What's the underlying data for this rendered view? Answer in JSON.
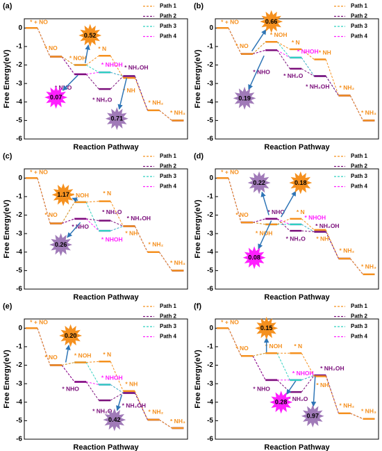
{
  "chart_data": [
    {
      "type": "line",
      "title": "(a)",
      "xlabel": "Reaction Pathway",
      "ylabel": "Free Energy(eV)",
      "x": [
        0,
        1,
        2,
        3,
        4,
        5,
        6
      ],
      "xlim": [
        -0.3,
        6.4
      ],
      "ylim": [
        -6,
        0.5
      ],
      "yticks": [
        0,
        -1,
        -2,
        -3,
        -4,
        -5,
        -6
      ],
      "series": [
        {
          "name": "Path 1",
          "color": "#f5901e",
          "values": [
            0,
            -1.55,
            -2.0,
            -1.5,
            -2.7,
            -4.45,
            -5.0
          ]
        },
        {
          "name": "Path 2",
          "color": "#7b0f7b",
          "values": [
            0,
            -1.55,
            -2.5,
            -3.3,
            -2.6,
            -4.45,
            -5.0
          ]
        },
        {
          "name": "Path 3",
          "color": "#2fd0c0",
          "values": [
            0,
            -1.55,
            -2.0,
            -2.4,
            -2.6,
            -4.45,
            -5.0
          ]
        },
        {
          "name": "Path 4",
          "color": "#ff1fff",
          "values": [
            0,
            -1.55,
            -2.5,
            -2.4,
            -2.6,
            -4.45,
            -5.0
          ]
        }
      ],
      "annotations": [
        {
          "text": "* + NO",
          "x": 0.3,
          "y": 0.3,
          "color": "#f5901e"
        },
        {
          "text": "* NO",
          "x": 0.8,
          "y": -1.1,
          "color": "#f5901e"
        },
        {
          "text": "* NOH",
          "x": 1.9,
          "y": -1.65,
          "color": "#f5901e"
        },
        {
          "text": "* N",
          "x": 2.9,
          "y": -1.15,
          "color": "#f5901e"
        },
        {
          "text": "* NHOH",
          "x": 3.3,
          "y": -2.0,
          "color": "#ff1fff"
        },
        {
          "text": "* NH₂OH",
          "x": 4.3,
          "y": -2.15,
          "color": "#7b0f7b"
        },
        {
          "text": "* NHO",
          "x": 1.3,
          "y": -3.25,
          "color": "#7b0f7b"
        },
        {
          "text": "* NH₂O",
          "x": 2.9,
          "y": -3.9,
          "color": "#7b0f7b"
        },
        {
          "text": "* NH",
          "x": 4.0,
          "y": -3.4,
          "color": "#f5901e"
        },
        {
          "text": "* NH₂",
          "x": 5.1,
          "y": -4.05,
          "color": "#f5901e"
        },
        {
          "text": "* NH₃",
          "x": 6.0,
          "y": -4.6,
          "color": "#f5901e"
        }
      ],
      "barriers": [
        {
          "value": 0.52,
          "label": "0.52",
          "x": 2.4,
          "y": -0.4,
          "color": "#f5901e",
          "target": [
            2.2,
            -1.9
          ]
        },
        {
          "value": 0.07,
          "label": "0.07",
          "x": 1.0,
          "y": -3.75,
          "color": "#ff1fff",
          "target": [
            1.9,
            -2.55
          ]
        },
        {
          "value": 0.71,
          "label": "0.71",
          "x": 3.5,
          "y": -4.9,
          "color": "#a07ab8",
          "target": [
            3.9,
            -2.7
          ]
        }
      ]
    },
    {
      "type": "line",
      "title": "(b)",
      "xlabel": "Reaction Pathway",
      "ylabel": "Free Energy(eV)",
      "x": [
        0,
        1,
        2,
        3,
        4,
        5,
        6
      ],
      "xlim": [
        -0.3,
        6.4
      ],
      "ylim": [
        -6,
        0.5
      ],
      "yticks": [
        0,
        -1,
        -2,
        -3,
        -4,
        -5,
        -6
      ],
      "series": [
        {
          "name": "Path 1",
          "color": "#f5901e",
          "values": [
            0,
            -1.4,
            -0.75,
            -1.15,
            -1.7,
            -3.65,
            -5.0
          ]
        },
        {
          "name": "Path 2",
          "color": "#7b0f7b",
          "values": [
            0,
            -1.4,
            -1.2,
            -2.2,
            -2.6,
            -3.65,
            -5.0
          ]
        },
        {
          "name": "Path 3",
          "color": "#2fd0c0",
          "values": [
            0,
            -1.4,
            -0.75,
            -1.6,
            -2.6,
            -3.65,
            -5.0
          ]
        },
        {
          "name": "Path 4",
          "color": "#ff1fff",
          "values": [
            0,
            -1.4,
            -1.2,
            -1.6,
            -2.6,
            -3.65,
            -5.0
          ]
        }
      ],
      "annotations": [
        {
          "text": "* + NO",
          "x": 0.3,
          "y": 0.3,
          "color": "#f5901e"
        },
        {
          "text": "* NO",
          "x": 0.8,
          "y": -1.0,
          "color": "#f5901e"
        },
        {
          "text": "* NOH",
          "x": 2.3,
          "y": -0.4,
          "color": "#f5901e"
        },
        {
          "text": "* N",
          "x": 3.0,
          "y": -0.8,
          "color": "#f5901e"
        },
        {
          "text": "* NHOH",
          "x": 3.5,
          "y": -1.3,
          "color": "#ff1fff"
        },
        {
          "text": "* NH",
          "x": 4.2,
          "y": -1.35,
          "color": "#f5901e"
        },
        {
          "text": "* NHO",
          "x": 1.6,
          "y": -2.4,
          "color": "#7b0f7b"
        },
        {
          "text": "* NH₂O",
          "x": 2.9,
          "y": -2.6,
          "color": "#7b0f7b"
        },
        {
          "text": "* NH₂OH",
          "x": 3.9,
          "y": -3.2,
          "color": "#7b0f7b"
        },
        {
          "text": "* NH₂",
          "x": 5.1,
          "y": -3.25,
          "color": "#f5901e"
        },
        {
          "text": "* NH₃",
          "x": 6.0,
          "y": -4.6,
          "color": "#f5901e"
        }
      ],
      "barriers": [
        {
          "value": 0.66,
          "label": "0.66",
          "x": 2.0,
          "y": 0.35,
          "color": "#f5901e",
          "target": [
            1.2,
            -1.25
          ]
        },
        {
          "value": 0.19,
          "label": "0.19",
          "x": 0.9,
          "y": -3.8,
          "color": "#a07ab8",
          "target": [
            1.7,
            -1.5
          ]
        }
      ]
    },
    {
      "type": "line",
      "title": "(c)",
      "xlabel": "Reaction Pathway",
      "ylabel": "Free Energy(eV)",
      "x": [
        0,
        1,
        2,
        3,
        4,
        5,
        6
      ],
      "xlim": [
        -0.3,
        6.4
      ],
      "ylim": [
        -6,
        0.5
      ],
      "yticks": [
        0,
        -1,
        -2,
        -3,
        -4,
        -5,
        -6
      ],
      "series": [
        {
          "name": "Path 1",
          "color": "#f5901e",
          "values": [
            0,
            -2.45,
            -1.3,
            -1.25,
            -2.6,
            -4.0,
            -5.0
          ]
        },
        {
          "name": "Path 2",
          "color": "#7b0f7b",
          "values": [
            0,
            -2.45,
            -2.2,
            -2.3,
            -2.6,
            -4.0,
            -5.0
          ]
        },
        {
          "name": "Path 3",
          "color": "#2fd0c0",
          "values": [
            0,
            -2.45,
            -1.3,
            -2.85,
            -2.6,
            -4.0,
            -5.0
          ]
        },
        {
          "name": "Path 4",
          "color": "#ff1fff",
          "values": [
            0,
            -2.45,
            -2.2,
            -2.85,
            -2.6,
            -4.0,
            -5.0
          ]
        }
      ],
      "annotations": [
        {
          "text": "* + NO",
          "x": 0.3,
          "y": 0.3,
          "color": "#f5901e"
        },
        {
          "text": "* NO",
          "x": 0.8,
          "y": -2.0,
          "color": "#f5901e"
        },
        {
          "text": "* NOH",
          "x": 2.0,
          "y": -0.95,
          "color": "#f5901e"
        },
        {
          "text": "* N",
          "x": 3.1,
          "y": -0.85,
          "color": "#f5901e"
        },
        {
          "text": "* NH₂O",
          "x": 3.3,
          "y": -1.85,
          "color": "#7b0f7b"
        },
        {
          "text": "* NH₂OH",
          "x": 4.4,
          "y": -2.2,
          "color": "#7b0f7b"
        },
        {
          "text": "* NHO",
          "x": 2.0,
          "y": -2.65,
          "color": "#7b0f7b"
        },
        {
          "text": "* NHOH",
          "x": 3.3,
          "y": -3.35,
          "color": "#ff1fff"
        },
        {
          "text": "* NH",
          "x": 4.1,
          "y": -3.0,
          "color": "#f5901e"
        },
        {
          "text": "* NH₂",
          "x": 5.1,
          "y": -3.6,
          "color": "#f5901e"
        },
        {
          "text": "* NH₃",
          "x": 6.0,
          "y": -4.6,
          "color": "#f5901e"
        }
      ],
      "barriers": [
        {
          "value": 1.17,
          "label": "1.17",
          "x": 1.3,
          "y": -0.9,
          "color": "#f5901e",
          "target": [
            1.9,
            -1.2
          ]
        },
        {
          "value": 0.26,
          "label": "0.26",
          "x": 1.2,
          "y": -3.6,
          "color": "#a07ab8",
          "target": [
            2.0,
            -2.4
          ]
        }
      ]
    },
    {
      "type": "line",
      "title": "(d)",
      "xlabel": "Reaction Pathway",
      "ylabel": "Free Energy(eV)",
      "x": [
        0,
        1,
        2,
        3,
        4,
        5,
        6
      ],
      "xlim": [
        -0.3,
        6.4
      ],
      "ylim": [
        -6,
        0.5
      ],
      "yticks": [
        0,
        -1,
        -2,
        -3,
        -4,
        -5,
        -6
      ],
      "series": [
        {
          "name": "Path 1",
          "color": "#f5901e",
          "values": [
            0,
            -2.4,
            -2.5,
            -2.2,
            -2.8,
            -4.35,
            -5.2
          ]
        },
        {
          "name": "Path 2",
          "color": "#7b0f7b",
          "values": [
            0,
            -2.4,
            -2.2,
            -2.85,
            -2.9,
            -4.35,
            -5.2
          ]
        },
        {
          "name": "Path 3",
          "color": "#2fd0c0",
          "values": [
            0,
            -2.4,
            -2.5,
            -2.5,
            -2.9,
            -4.35,
            -5.2
          ]
        },
        {
          "name": "Path 4",
          "color": "#ff1fff",
          "values": [
            0,
            -2.4,
            -2.2,
            -2.5,
            -2.9,
            -4.35,
            -5.2
          ]
        }
      ],
      "annotations": [
        {
          "text": "* + NO",
          "x": 0.3,
          "y": 0.3,
          "color": "#f5901e"
        },
        {
          "text": "* NO",
          "x": 0.8,
          "y": -2.0,
          "color": "#f5901e"
        },
        {
          "text": "* NHO",
          "x": 2.2,
          "y": -1.85,
          "color": "#7b0f7b"
        },
        {
          "text": "* N",
          "x": 3.2,
          "y": -1.85,
          "color": "#f5901e"
        },
        {
          "text": "* NHOH",
          "x": 3.8,
          "y": -2.15,
          "color": "#ff1fff"
        },
        {
          "text": "* NH₂OH",
          "x": 4.3,
          "y": -2.6,
          "color": "#7b0f7b"
        },
        {
          "text": "* NOH",
          "x": 1.7,
          "y": -3.0,
          "color": "#f5901e"
        },
        {
          "text": "* NH₂O",
          "x": 3.0,
          "y": -3.3,
          "color": "#7b0f7b"
        },
        {
          "text": "* NH",
          "x": 4.1,
          "y": -3.3,
          "color": "#f5901e"
        },
        {
          "text": "* NH₂",
          "x": 5.1,
          "y": -3.95,
          "color": "#f5901e"
        },
        {
          "text": "* NH₃",
          "x": 6.0,
          "y": -4.8,
          "color": "#f5901e"
        }
      ],
      "barriers": [
        {
          "value": 0.22,
          "label": "0.22",
          "x": 1.5,
          "y": -0.25,
          "color": "#a07ab8",
          "target": [
            1.9,
            -2.0
          ]
        },
        {
          "value": 0.18,
          "label": "0.18",
          "x": 3.2,
          "y": -0.25,
          "color": "#f5901e",
          "target": [
            2.4,
            -2.1
          ]
        },
        {
          "value": 0.08,
          "label": "0.08",
          "x": 1.3,
          "y": -4.3,
          "color": "#ff1fff",
          "target": [
            2.0,
            -2.3
          ]
        }
      ]
    },
    {
      "type": "line",
      "title": "(e)",
      "xlabel": "Reaction Pathway",
      "ylabel": "Free Energy(eV)",
      "x": [
        0,
        1,
        2,
        3,
        4,
        5,
        6
      ],
      "xlim": [
        -0.3,
        6.4
      ],
      "ylim": [
        -6,
        0.5
      ],
      "yticks": [
        0,
        -1,
        -2,
        -3,
        -4,
        -5,
        -6
      ],
      "series": [
        {
          "name": "Path 1",
          "color": "#f5901e",
          "values": [
            0,
            -2.0,
            -1.85,
            -1.8,
            -3.4,
            -4.95,
            -5.4
          ]
        },
        {
          "name": "Path 2",
          "color": "#7b0f7b",
          "values": [
            0,
            -2.0,
            -2.9,
            -3.9,
            -3.5,
            -4.95,
            -5.4
          ]
        },
        {
          "name": "Path 3",
          "color": "#2fd0c0",
          "values": [
            0,
            -2.0,
            -1.85,
            -3.05,
            -3.5,
            -4.95,
            -5.4
          ]
        },
        {
          "name": "Path 4",
          "color": "#ff1fff",
          "values": [
            0,
            -2.0,
            -2.9,
            -3.05,
            -3.5,
            -4.95,
            -5.4
          ]
        }
      ],
      "annotations": [
        {
          "text": "* + NO",
          "x": 0.3,
          "y": 0.3,
          "color": "#f5901e"
        },
        {
          "text": "* NO",
          "x": 0.8,
          "y": -1.6,
          "color": "#f5901e"
        },
        {
          "text": "* NOH",
          "x": 2.1,
          "y": -1.5,
          "color": "#f5901e"
        },
        {
          "text": "* N",
          "x": 3.1,
          "y": -1.45,
          "color": "#f5901e"
        },
        {
          "text": "* NHOH",
          "x": 3.3,
          "y": -2.7,
          "color": "#ff1fff"
        },
        {
          "text": "* NH",
          "x": 4.1,
          "y": -3.05,
          "color": "#f5901e"
        },
        {
          "text": "* NHO",
          "x": 1.6,
          "y": -3.3,
          "color": "#7b0f7b"
        },
        {
          "text": "* NH₂O",
          "x": 2.9,
          "y": -4.5,
          "color": "#7b0f7b"
        },
        {
          "text": "* NH₂OH",
          "x": 4.2,
          "y": -4.2,
          "color": "#7b0f7b"
        },
        {
          "text": "* NH₂",
          "x": 5.1,
          "y": -4.55,
          "color": "#f5901e"
        },
        {
          "text": "* NH₃",
          "x": 6.0,
          "y": -5.05,
          "color": "#f5901e"
        }
      ],
      "barriers": [
        {
          "value": 0.2,
          "label": "0.20",
          "x": 1.6,
          "y": -0.4,
          "color": "#f5901e",
          "target": [
            1.4,
            -1.85
          ]
        },
        {
          "value": 0.42,
          "label": "0.42",
          "x": 3.4,
          "y": -4.95,
          "color": "#a07ab8",
          "target": [
            3.7,
            -3.6
          ]
        }
      ]
    },
    {
      "type": "line",
      "title": "(f)",
      "xlabel": "Reaction Pathway",
      "ylabel": "Free Energy(eV)",
      "x": [
        0,
        1,
        2,
        3,
        4,
        5,
        6
      ],
      "xlim": [
        -0.3,
        6.4
      ],
      "ylim": [
        -6,
        0.5
      ],
      "yticks": [
        0,
        -1,
        -2,
        -3,
        -4,
        -5,
        -6
      ],
      "series": [
        {
          "name": "Path 1",
          "color": "#f5901e",
          "values": [
            0,
            -1.5,
            -1.35,
            -1.35,
            -2.6,
            -4.6,
            -4.9
          ]
        },
        {
          "name": "Path 2",
          "color": "#7b0f7b",
          "values": [
            0,
            -1.5,
            -2.8,
            -3.45,
            -2.55,
            -4.6,
            -4.9
          ]
        },
        {
          "name": "Path 3",
          "color": "#2fd0c0",
          "values": [
            0,
            -1.5,
            -1.35,
            -2.8,
            -2.55,
            -4.6,
            -4.9
          ]
        },
        {
          "name": "Path 4",
          "color": "#ff1fff",
          "values": [
            0,
            -1.5,
            -2.8,
            -2.8,
            -2.55,
            -4.6,
            -4.9
          ]
        }
      ],
      "annotations": [
        {
          "text": "* + NO",
          "x": 0.3,
          "y": 0.3,
          "color": "#f5901e"
        },
        {
          "text": "* NO",
          "x": 0.8,
          "y": -1.1,
          "color": "#f5901e"
        },
        {
          "text": "* NOH",
          "x": 2.1,
          "y": -1.0,
          "color": "#f5901e"
        },
        {
          "text": "* N",
          "x": 3.1,
          "y": -1.0,
          "color": "#f5901e"
        },
        {
          "text": "* NHOH",
          "x": 3.3,
          "y": -2.45,
          "color": "#ff1fff"
        },
        {
          "text": "* NH₂OH",
          "x": 4.5,
          "y": -2.2,
          "color": "#7b0f7b"
        },
        {
          "text": "* NHO",
          "x": 1.6,
          "y": -3.3,
          "color": "#7b0f7b"
        },
        {
          "text": "* NH₂O",
          "x": 3.1,
          "y": -3.85,
          "color": "#7b0f7b"
        },
        {
          "text": "* NH",
          "x": 4.1,
          "y": -3.1,
          "color": "#f5901e"
        },
        {
          "text": "* NH₂",
          "x": 5.1,
          "y": -4.2,
          "color": "#f5901e"
        },
        {
          "text": "* NH₃",
          "x": 6.0,
          "y": -4.5,
          "color": "#f5901e"
        }
      ],
      "barriers": [
        {
          "value": 0.15,
          "label": "0.15",
          "x": 1.8,
          "y": 0.0,
          "color": "#f5901e",
          "target": [
            1.8,
            -1.3
          ]
        },
        {
          "value": 0.28,
          "label": "0.28",
          "x": 2.4,
          "y": -4.0,
          "color": "#ff1fff",
          "target": [
            3.0,
            -2.85
          ]
        },
        {
          "value": 0.97,
          "label": "0.97",
          "x": 3.7,
          "y": -4.75,
          "color": "#a07ab8",
          "target": [
            3.8,
            -2.6
          ]
        }
      ]
    }
  ]
}
